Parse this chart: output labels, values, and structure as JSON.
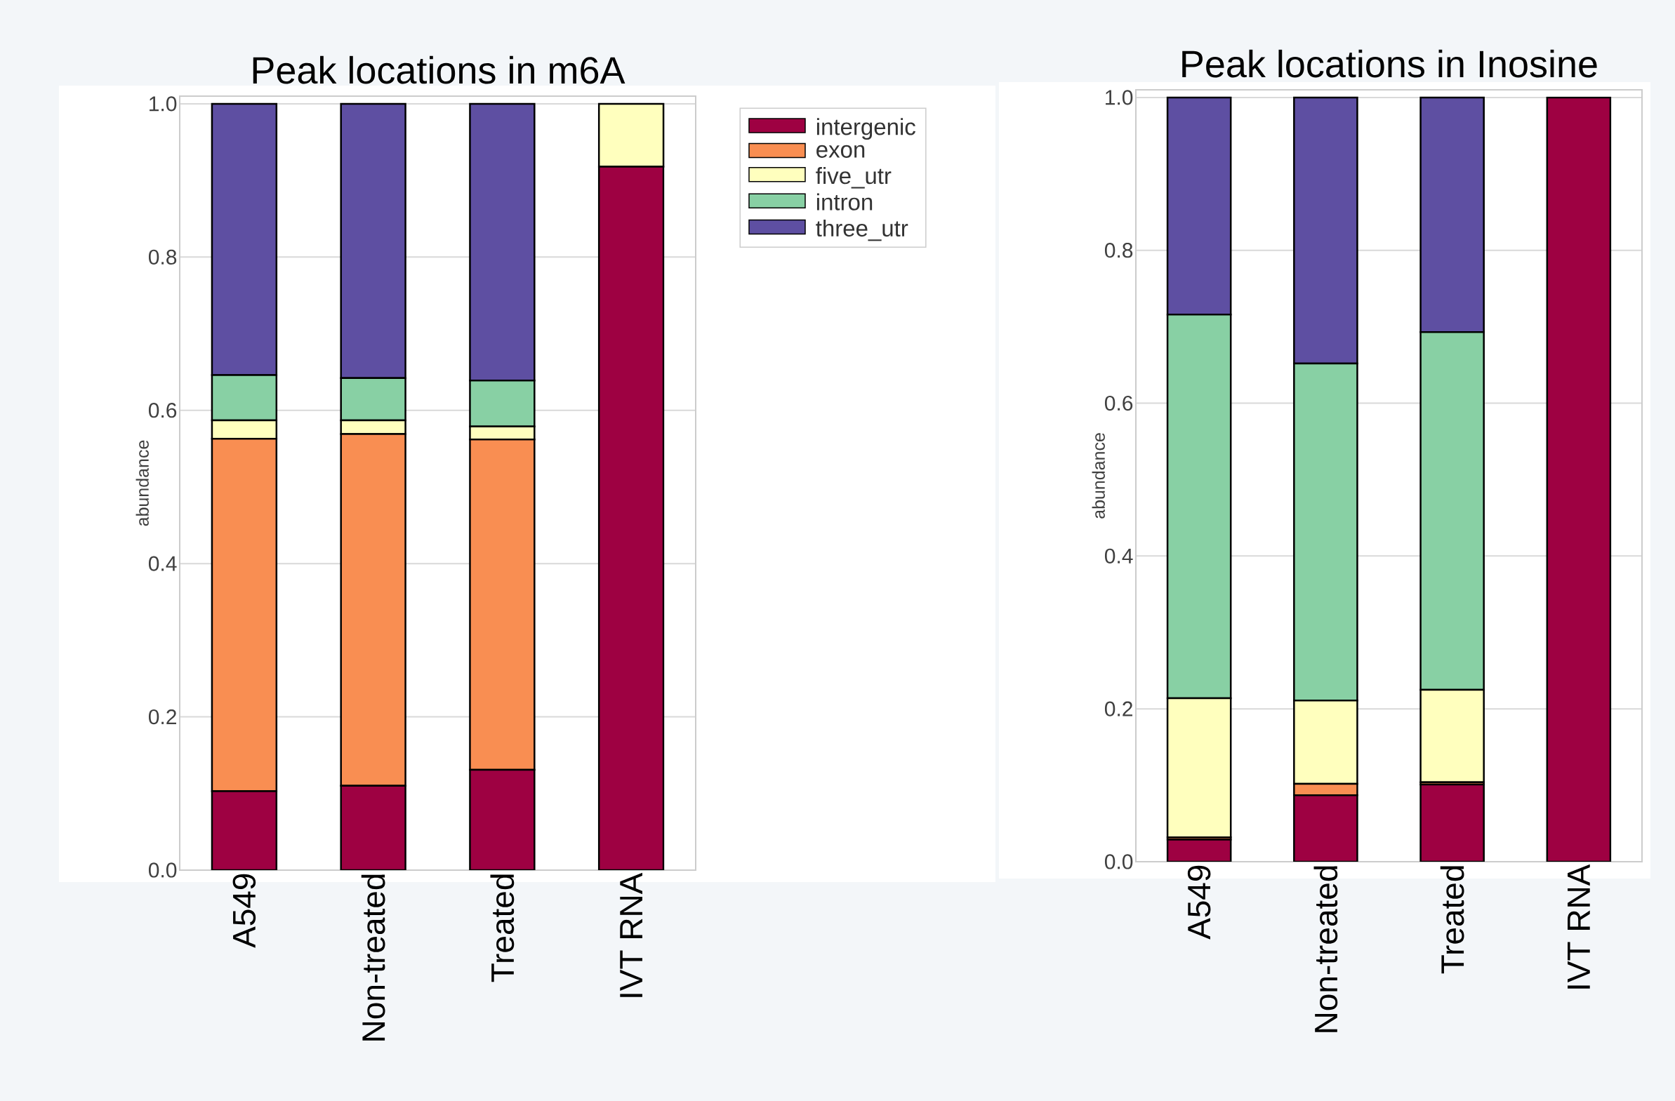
{
  "chart_data": [
    {
      "type": "bar",
      "stacked": true,
      "title": "Peak locations in m6A",
      "ylabel": "abundance",
      "categories": [
        "A549",
        "Non-treated",
        "Treated",
        "IVT RNA"
      ],
      "series": [
        {
          "name": "intergenic",
          "color": "#9e0142",
          "values": [
            0.103,
            0.11,
            0.131,
            0.918
          ]
        },
        {
          "name": "exon",
          "color": "#f98e52",
          "values": [
            0.46,
            0.459,
            0.431,
            0
          ]
        },
        {
          "name": "five_utr",
          "color": "#ffffbe",
          "values": [
            0.024,
            0.018,
            0.017,
            0.082
          ]
        },
        {
          "name": "intron",
          "color": "#88d0a4",
          "values": [
            0.059,
            0.055,
            0.06,
            0
          ]
        },
        {
          "name": "three_utr",
          "color": "#5e4fa2",
          "values": [
            0.354,
            0.358,
            0.361,
            0
          ]
        }
      ],
      "ylim": [
        0,
        1.01
      ],
      "yticks": [
        {
          "value": 0,
          "label": "0.0"
        },
        {
          "value": 0.2,
          "label": "0.2"
        },
        {
          "value": 0.4,
          "label": "0.4"
        },
        {
          "value": 0.6,
          "label": "0.6"
        },
        {
          "value": 0.8,
          "label": "0.8"
        },
        {
          "value": 1,
          "label": "1.0"
        }
      ],
      "grid": "y",
      "legend": "top right"
    },
    {
      "type": "bar",
      "stacked": true,
      "title": "Peak locations in Inosine",
      "ylabel": "abundance",
      "categories": [
        "A549",
        "Non-treated",
        "Treated",
        "IVT RNA"
      ],
      "series": [
        {
          "color": "#9e0142",
          "values": [
            0.029,
            0.087,
            0.101,
            1
          ]
        },
        {
          "color": "#f98e52",
          "values": [
            0.003,
            0.015,
            0.003,
            0
          ]
        },
        {
          "color": "#ffffbe",
          "values": [
            0.182,
            0.109,
            0.121,
            0
          ]
        },
        {
          "color": "#88d0a4",
          "values": [
            0.502,
            0.441,
            0.468,
            0
          ]
        },
        {
          "color": "#5e4fa2",
          "values": [
            0.284,
            0.348,
            0.307,
            0
          ]
        }
      ],
      "ylim": [
        0,
        1.01
      ],
      "yticks": [
        {
          "value": 0,
          "label": "0.0"
        },
        {
          "value": 0.2,
          "label": "0.2"
        },
        {
          "value": 0.4,
          "label": "0.4"
        },
        {
          "value": 0.6,
          "label": "0.6"
        },
        {
          "value": 0.8,
          "label": "0.8"
        },
        {
          "value": 1,
          "label": "1.0"
        }
      ],
      "grid": "y"
    }
  ]
}
